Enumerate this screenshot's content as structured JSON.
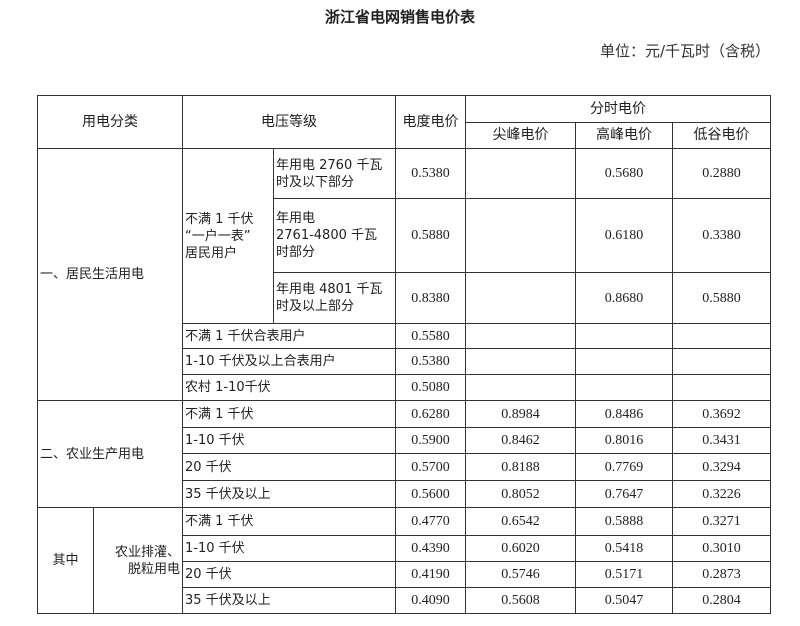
{
  "title": "浙江省电网销售电价表",
  "unit": "单位：元/千瓦时（含税）",
  "header": {
    "category": "用电分类",
    "voltage": "电压等级",
    "energy_price": "电度电价",
    "tou_price": "分时电价",
    "sharp_peak": "尖峰电价",
    "peak": "高峰电价",
    "valley": "低谷电价"
  },
  "residential": {
    "category": "一、居民生活用电",
    "group": "不满 1 千伏\n“一户一表”\n居民用户",
    "tiers": [
      {
        "label": "年用电 2760 千瓦\n时及以下部分",
        "price": "0.5380",
        "sharp": "",
        "peak": "0.5680",
        "valley": "0.2880"
      },
      {
        "label": "年用电\n2761-4800 千瓦\n时部分",
        "price": "0.5880",
        "sharp": "",
        "peak": "0.6180",
        "valley": "0.3380"
      },
      {
        "label": "年用电 4801 千瓦\n时及以上部分",
        "price": "0.8380",
        "sharp": "",
        "peak": "0.8680",
        "valley": "0.5880"
      }
    ],
    "others": [
      {
        "label": "不满 1 千伏合表用户",
        "price": "0.5580"
      },
      {
        "label": "1-10 千伏及以上合表用户",
        "price": "0.5380"
      },
      {
        "label": "农村 1-10千伏",
        "price": "0.5080"
      }
    ]
  },
  "agriculture": {
    "category": "二、农业生产用电",
    "rows": [
      {
        "label": "不满 1 千伏",
        "price": "0.6280",
        "sharp": "0.8984",
        "peak": "0.8486",
        "valley": "0.3692"
      },
      {
        "label": "1-10 千伏",
        "price": "0.5900",
        "sharp": "0.8462",
        "peak": "0.8016",
        "valley": "0.3431"
      },
      {
        "label": "20 千伏",
        "price": "0.5700",
        "sharp": "0.8188",
        "peak": "0.7769",
        "valley": "0.3294"
      },
      {
        "label": "35 千伏及以上",
        "price": "0.5600",
        "sharp": "0.8052",
        "peak": "0.7647",
        "valley": "0.3226"
      }
    ]
  },
  "irrigation": {
    "among": "其中",
    "category": "农业排灌、\n脱粒用电",
    "rows": [
      {
        "label": "不满 1 千伏",
        "price": "0.4770",
        "sharp": "0.6542",
        "peak": "0.5888",
        "valley": "0.3271"
      },
      {
        "label": "1-10 千伏",
        "price": "0.4390",
        "sharp": "0.6020",
        "peak": "0.5418",
        "valley": "0.3010"
      },
      {
        "label": "20 千伏",
        "price": "0.4190",
        "sharp": "0.5746",
        "peak": "0.5171",
        "valley": "0.2873"
      },
      {
        "label": "35 千伏及以上",
        "price": "0.4090",
        "sharp": "0.5608",
        "peak": "0.5047",
        "valley": "0.2804"
      }
    ]
  }
}
